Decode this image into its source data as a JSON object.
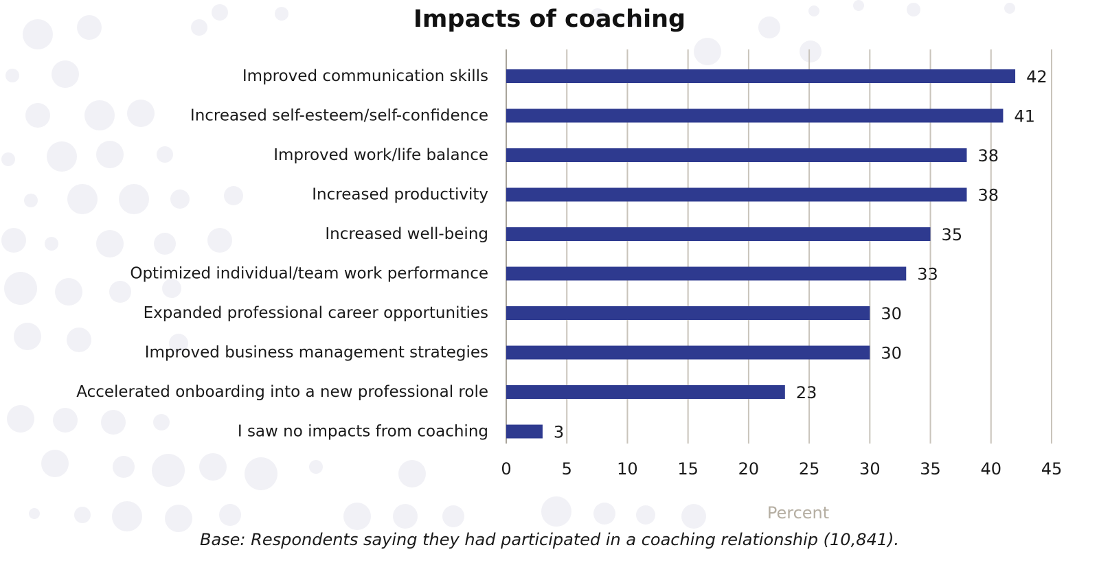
{
  "chart_data": {
    "type": "bar",
    "orientation": "horizontal",
    "title": "Impacts of coaching",
    "xlabel": "Percent",
    "ylabel": "",
    "categories": [
      "Improved communication skills",
      "Increased self-esteem/self-confidence",
      "Improved work/life balance",
      "Increased productivity",
      "Increased well-being",
      "Optimized individual/team work performance",
      "Expanded professional career opportunities",
      "Improved business management strategies",
      "Accelerated onboarding into a new professional role",
      "I saw no impacts from coaching"
    ],
    "values": [
      42,
      41,
      38,
      38,
      35,
      33,
      30,
      30,
      23,
      3
    ],
    "xlim": [
      0,
      45
    ],
    "xticks": [
      0,
      5,
      10,
      15,
      20,
      25,
      30,
      35,
      40,
      45
    ],
    "grid": "vertical",
    "legend": "none",
    "bar_color": "#2e3a8f",
    "footnote": "Base: Respondents saying they had participated in a coaching relationship (10,841)."
  }
}
